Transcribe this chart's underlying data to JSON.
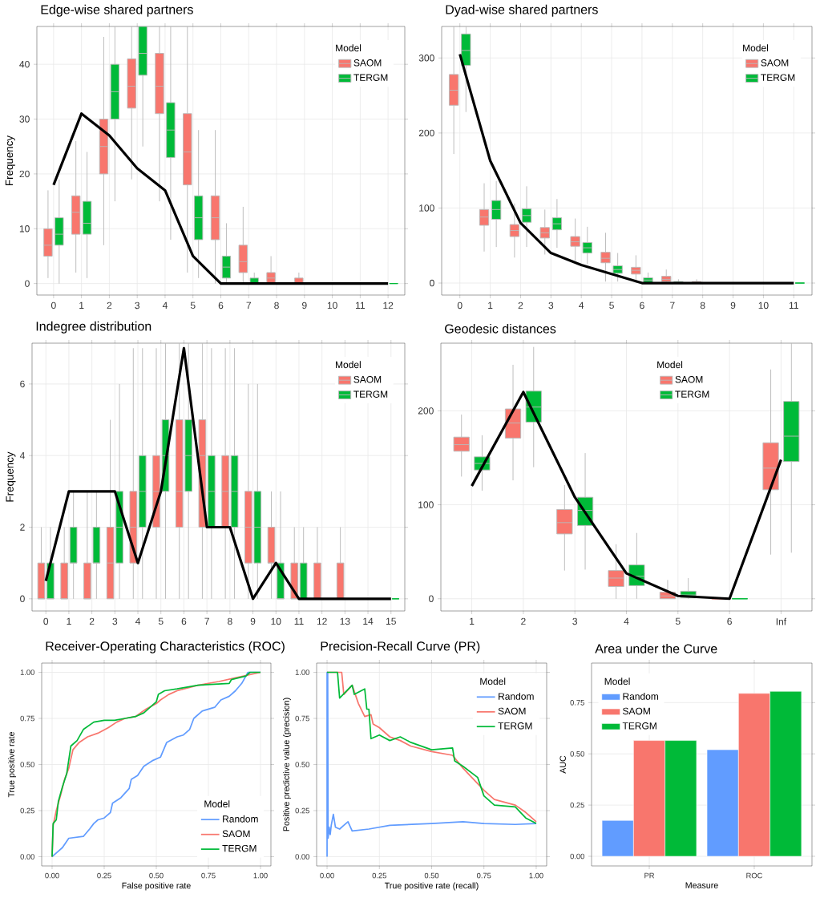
{
  "chart_data": [
    {
      "type": "box",
      "title": "Edge-wise shared partners",
      "ylabel": "Frequency",
      "legend_title": "Model",
      "legend": "top right",
      "grid": true,
      "categories": [
        "0",
        "1",
        "2",
        "3",
        "4",
        "5",
        "6",
        "7",
        "8",
        "9",
        "10",
        "11",
        "12"
      ],
      "ylim": [
        -2.1,
        46.9
      ],
      "yticks": [
        0,
        10,
        20,
        30,
        40
      ],
      "series": [
        {
          "name": "SAOM",
          "color": "#f8766d",
          "boxes": [
            {
              "low": 1,
              "q1": 5,
              "median": 7,
              "q3": 10,
              "high": 17
            },
            {
              "low": 2,
              "q1": 9,
              "median": 13,
              "q3": 16,
              "high": 26
            },
            {
              "low": 7,
              "q1": 20,
              "median": 25,
              "q3": 30,
              "high": 45
            },
            {
              "low": 19,
              "q1": 32,
              "median": 36,
              "q3": 41,
              "high": 46.9
            },
            {
              "low": 15,
              "q1": 31,
              "median": 36,
              "q3": 42,
              "high": 46.9
            },
            {
              "low": 2,
              "q1": 18,
              "median": 24,
              "q3": 31,
              "high": 46.9
            },
            {
              "low": 0,
              "q1": 8,
              "median": 12,
              "q3": 16,
              "high": 28
            },
            {
              "low": 0,
              "q1": 2,
              "median": 4,
              "q3": 7,
              "high": 14
            },
            {
              "low": 0,
              "q1": 0,
              "median": 1,
              "q3": 2,
              "high": 5
            },
            {
              "low": 0,
              "q1": 0,
              "median": 0,
              "q3": 1,
              "high": 2
            },
            {
              "low": 0,
              "q1": 0,
              "median": 0,
              "q3": 0,
              "high": 0
            },
            {
              "low": 0,
              "q1": 0,
              "median": 0,
              "q3": 0,
              "high": 0
            },
            {
              "low": 0,
              "q1": 0,
              "median": 0,
              "q3": 0,
              "high": 0
            }
          ]
        },
        {
          "name": "TERGM",
          "color": "#00ba38",
          "boxes": [
            {
              "low": 0,
              "q1": 7,
              "median": 9,
              "q3": 12,
              "high": 19
            },
            {
              "low": 1,
              "q1": 9,
              "median": 11,
              "q3": 15,
              "high": 24
            },
            {
              "low": 15,
              "q1": 30,
              "median": 35,
              "q3": 40,
              "high": 46.9
            },
            {
              "low": 25,
              "q1": 38,
              "median": 42,
              "q3": 46.9,
              "high": 46.9
            },
            {
              "low": 8,
              "q1": 23,
              "median": 28,
              "q3": 33,
              "high": 46.9
            },
            {
              "low": 1,
              "q1": 8,
              "median": 12,
              "q3": 16,
              "high": 28
            },
            {
              "low": 0,
              "q1": 1,
              "median": 3,
              "q3": 5,
              "high": 11
            },
            {
              "low": 0,
              "q1": 0,
              "median": 0,
              "q3": 1,
              "high": 2
            },
            {
              "low": 0,
              "q1": 0,
              "median": 0,
              "q3": 0,
              "high": 0
            },
            {
              "low": 0,
              "q1": 0,
              "median": 0,
              "q3": 0,
              "high": 0
            },
            {
              "low": 0,
              "q1": 0,
              "median": 0,
              "q3": 0,
              "high": 0
            },
            {
              "low": 0,
              "q1": 0,
              "median": 0,
              "q3": 0,
              "high": 0
            },
            {
              "low": 0,
              "q1": 0,
              "median": 0,
              "q3": 0,
              "high": 0
            }
          ]
        },
        {
          "type": "line",
          "color": "#000000",
          "values": [
            18,
            31,
            27,
            21,
            17,
            5,
            0,
            0,
            0,
            0,
            0,
            0,
            0
          ]
        }
      ]
    },
    {
      "type": "box",
      "title": "Dyad-wise shared partners",
      "legend_title": "Model",
      "legend": "top right",
      "grid": true,
      "categories": [
        "0",
        "1",
        "2",
        "3",
        "4",
        "5",
        "6",
        "7",
        "8",
        "9",
        "10",
        "11"
      ],
      "ylim": [
        -16,
        342
      ],
      "yticks": [
        0,
        100,
        200,
        300
      ],
      "series": [
        {
          "name": "SAOM",
          "color": "#f8766d",
          "boxes": [
            {
              "low": 172,
              "q1": 237,
              "median": 257,
              "q3": 278,
              "high": 342
            },
            {
              "low": 42,
              "q1": 77,
              "median": 88,
              "q3": 98,
              "high": 133
            },
            {
              "low": 34,
              "q1": 62,
              "median": 70,
              "q3": 78,
              "high": 106
            },
            {
              "low": 38,
              "q1": 60,
              "median": 67,
              "q3": 74,
              "high": 98
            },
            {
              "low": 30,
              "q1": 49,
              "median": 55,
              "q3": 62,
              "high": 86
            },
            {
              "low": 2,
              "q1": 27,
              "median": 33,
              "q3": 41,
              "high": 67
            },
            {
              "low": 0,
              "q1": 12,
              "median": 17,
              "q3": 21,
              "high": 37
            },
            {
              "low": 0,
              "q1": 2,
              "median": 5,
              "q3": 9,
              "high": 18
            },
            {
              "low": 0,
              "q1": 0,
              "median": 1,
              "q3": 2,
              "high": 5
            },
            {
              "low": 0,
              "q1": 0,
              "median": 0,
              "q3": 0,
              "high": 0
            },
            {
              "low": 0,
              "q1": 0,
              "median": 0,
              "q3": 0,
              "high": 0
            },
            {
              "low": 0,
              "q1": 0,
              "median": 0,
              "q3": 0,
              "high": 0
            }
          ]
        },
        {
          "name": "TERGM",
          "color": "#00ba38",
          "boxes": [
            {
              "low": 228,
              "q1": 290,
              "median": 310,
              "q3": 332,
              "high": 342
            },
            {
              "low": 48,
              "q1": 85,
              "median": 98,
              "q3": 110,
              "high": 136
            },
            {
              "low": 48,
              "q1": 81,
              "median": 90,
              "q3": 99,
              "high": 129
            },
            {
              "low": 47,
              "q1": 71,
              "median": 79,
              "q3": 87,
              "high": 112
            },
            {
              "low": 25,
              "q1": 40,
              "median": 47,
              "q3": 54,
              "high": 75
            },
            {
              "low": 2,
              "q1": 13,
              "median": 18,
              "q3": 23,
              "high": 40
            },
            {
              "low": 0,
              "q1": 1,
              "median": 4,
              "q3": 7,
              "high": 14
            },
            {
              "low": 0,
              "q1": 0,
              "median": 1,
              "q3": 2,
              "high": 5
            },
            {
              "low": 0,
              "q1": 0,
              "median": 0,
              "q3": 0,
              "high": 0
            },
            {
              "low": 0,
              "q1": 0,
              "median": 0,
              "q3": 0,
              "high": 0
            },
            {
              "low": 0,
              "q1": 0,
              "median": 0,
              "q3": 0,
              "high": 0
            },
            {
              "low": 0,
              "q1": 0,
              "median": 0,
              "q3": 0,
              "high": 0
            }
          ]
        },
        {
          "type": "line",
          "color": "#000000",
          "values": [
            305,
            163,
            80,
            40,
            24,
            12,
            0,
            0,
            0,
            0,
            0,
            0
          ]
        }
      ]
    },
    {
      "type": "box",
      "title": "Indegree distribution",
      "ylabel": "Frequency",
      "legend_title": "Model",
      "legend": "top right",
      "grid": true,
      "categories": [
        "0",
        "1",
        "2",
        "3",
        "4",
        "5",
        "6",
        "7",
        "8",
        "9",
        "10",
        "11",
        "12",
        "13",
        "14",
        "15"
      ],
      "ylim": [
        -0.34,
        7.14
      ],
      "yticks": [
        0,
        2,
        4,
        6
      ],
      "series": [
        {
          "name": "SAOM",
          "color": "#f8766d",
          "boxes": [
            {
              "low": 0,
              "q1": 0,
              "median": 0,
              "q3": 1,
              "high": 2
            },
            {
              "low": 0,
              "q1": 0,
              "median": 0,
              "q3": 1,
              "high": 2
            },
            {
              "low": 0,
              "q1": 0,
              "median": 0,
              "q3": 1,
              "high": 3
            },
            {
              "low": 0,
              "q1": 0,
              "median": 1,
              "q3": 2,
              "high": 5
            },
            {
              "low": 0,
              "q1": 1,
              "median": 2,
              "q3": 3,
              "high": 7
            },
            {
              "low": 0,
              "q1": 2,
              "median": 3,
              "q3": 4,
              "high": 7
            },
            {
              "low": 0,
              "q1": 2,
              "median": 3,
              "q3": 5,
              "high": 7.14
            },
            {
              "low": 0,
              "q1": 2,
              "median": 4,
              "q3": 5,
              "high": 7.14
            },
            {
              "low": 0,
              "q1": 2,
              "median": 3,
              "q3": 4,
              "high": 7
            },
            {
              "low": 0,
              "q1": 1,
              "median": 2,
              "q3": 3,
              "high": 6
            },
            {
              "low": 0,
              "q1": 1,
              "median": 1,
              "q3": 2,
              "high": 3
            },
            {
              "low": 0,
              "q1": 0,
              "median": 0,
              "q3": 1,
              "high": 2
            },
            {
              "low": 0,
              "q1": 0,
              "median": 0,
              "q3": 1,
              "high": 2
            },
            {
              "low": 0,
              "q1": 0,
              "median": 0,
              "q3": 1,
              "high": 2
            },
            {
              "low": 0,
              "q1": 0,
              "median": 0,
              "q3": 0,
              "high": 0
            },
            {
              "low": 0,
              "q1": 0,
              "median": 0,
              "q3": 0,
              "high": 0
            }
          ]
        },
        {
          "name": "TERGM",
          "color": "#00ba38",
          "boxes": [
            {
              "low": 0,
              "q1": 0,
              "median": 0,
              "q3": 1,
              "high": 2
            },
            {
              "low": 0,
              "q1": 1,
              "median": 1,
              "q3": 2,
              "high": 3
            },
            {
              "low": 0,
              "q1": 1,
              "median": 1,
              "q3": 2,
              "high": 3
            },
            {
              "low": 0,
              "q1": 1,
              "median": 2,
              "q3": 3,
              "high": 6
            },
            {
              "low": 0,
              "q1": 2,
              "median": 3,
              "q3": 4,
              "high": 7
            },
            {
              "low": 0,
              "q1": 3,
              "median": 4,
              "q3": 5,
              "high": 7.14
            },
            {
              "low": 0,
              "q1": 3,
              "median": 4,
              "q3": 5,
              "high": 7.14
            },
            {
              "low": 0,
              "q1": 2,
              "median": 3,
              "q3": 4,
              "high": 7
            },
            {
              "low": 0,
              "q1": 2,
              "median": 3,
              "q3": 4,
              "high": 7
            },
            {
              "low": 0,
              "q1": 1,
              "median": 2,
              "q3": 3,
              "high": 6
            },
            {
              "low": 0,
              "q1": 0,
              "median": 0,
              "q3": 1,
              "high": 3
            },
            {
              "low": 0,
              "q1": 0,
              "median": 0,
              "q3": 1,
              "high": 2
            },
            {
              "low": 0,
              "q1": 0,
              "median": 0,
              "q3": 0,
              "high": 0
            },
            {
              "low": 0,
              "q1": 0,
              "median": 0,
              "q3": 0,
              "high": 0
            },
            {
              "low": 0,
              "q1": 0,
              "median": 0,
              "q3": 0,
              "high": 0
            },
            {
              "low": 0,
              "q1": 0,
              "median": 0,
              "q3": 0,
              "high": 0
            }
          ]
        },
        {
          "type": "line",
          "color": "#000000",
          "values": [
            0.5,
            3,
            3,
            3,
            1,
            3,
            7,
            2,
            2,
            0,
            1,
            0,
            0,
            0,
            0,
            0
          ]
        }
      ]
    },
    {
      "type": "box",
      "title": "Geodesic distances",
      "legend_title": "Model",
      "legend": "top",
      "grid": true,
      "categories": [
        "1",
        "2",
        "3",
        "4",
        "5",
        "6",
        "Inf"
      ],
      "ylim": [
        -13,
        272
      ],
      "yticks": [
        0,
        100,
        200
      ],
      "series": [
        {
          "name": "SAOM",
          "color": "#f8766d",
          "boxes": [
            {
              "low": 130,
              "q1": 157,
              "median": 164,
              "q3": 172,
              "high": 196
            },
            {
              "low": 126,
              "q1": 171,
              "median": 187,
              "q3": 202,
              "high": 249
            },
            {
              "low": 30,
              "q1": 69,
              "median": 81,
              "q3": 95,
              "high": 121
            },
            {
              "low": 0,
              "q1": 13,
              "median": 22,
              "q3": 30,
              "high": 58
            },
            {
              "low": 0,
              "q1": 0,
              "median": 3,
              "q3": 7,
              "high": 20
            },
            {
              "low": 0,
              "q1": 0,
              "median": 0,
              "q3": 0,
              "high": 0
            },
            {
              "low": 47,
              "q1": 116,
              "median": 139,
              "q3": 166,
              "high": 244
            }
          ]
        },
        {
          "name": "TERGM",
          "color": "#00ba38",
          "boxes": [
            {
              "low": 115,
              "q1": 137,
              "median": 144,
              "q3": 151,
              "high": 174
            },
            {
              "low": 140,
              "q1": 188,
              "median": 204,
              "q3": 221,
              "high": 268
            },
            {
              "low": 31,
              "q1": 78,
              "median": 94,
              "q3": 108,
              "high": 155
            },
            {
              "low": 0,
              "q1": 14,
              "median": 24,
              "q3": 36,
              "high": 70
            },
            {
              "low": 0,
              "q1": 1,
              "median": 4,
              "q3": 8,
              "high": 22
            },
            {
              "low": 0,
              "q1": 0,
              "median": 0,
              "q3": 0,
              "high": 0
            },
            {
              "low": 49,
              "q1": 146,
              "median": 173,
              "q3": 210,
              "high": 272
            }
          ]
        },
        {
          "type": "line",
          "color": "#000000",
          "values": [
            120,
            220,
            108,
            27,
            3,
            0,
            148
          ]
        }
      ]
    },
    {
      "type": "line",
      "title": "Receiver-Operating Characteristics (ROC)",
      "xlabel": "False positive rate",
      "ylabel": "True positive rate",
      "legend_title": "Model",
      "legend": "bottom right",
      "grid": true,
      "xlim": [
        -0.05,
        1.05
      ],
      "ylim": [
        -0.05,
        1.05
      ],
      "xticks": [
        {
          "value": 0,
          "label": "0.00"
        },
        {
          "value": 0.25,
          "label": "0.25"
        },
        {
          "value": 0.5,
          "label": "0.50"
        },
        {
          "value": 0.75,
          "label": "0.75"
        },
        {
          "value": 1,
          "label": "1.00"
        }
      ],
      "yticks": [
        {
          "value": 0,
          "label": "0.00"
        },
        {
          "value": 0.25,
          "label": "0.25"
        },
        {
          "value": 0.5,
          "label": "0.50"
        },
        {
          "value": 0.75,
          "label": "0.75"
        },
        {
          "value": 1,
          "label": "1.00"
        }
      ],
      "series": [
        {
          "name": "Random",
          "color": "#619cff",
          "x": [
            0,
            0.01,
            0.03,
            0.05,
            0.08,
            0.15,
            0.18,
            0.2,
            0.22,
            0.25,
            0.28,
            0.29,
            0.33,
            0.37,
            0.38,
            0.41,
            0.44,
            0.48,
            0.52,
            0.55,
            0.6,
            0.63,
            0.66,
            0.68,
            0.72,
            0.78,
            0.81,
            0.85,
            0.88,
            0.91,
            0.94,
            1
          ],
          "values": [
            0,
            0.01,
            0.03,
            0.05,
            0.1,
            0.11,
            0.15,
            0.18,
            0.2,
            0.21,
            0.24,
            0.29,
            0.32,
            0.37,
            0.42,
            0.44,
            0.49,
            0.52,
            0.54,
            0.62,
            0.65,
            0.66,
            0.69,
            0.75,
            0.79,
            0.81,
            0.85,
            0.87,
            0.9,
            0.94,
            1,
            1
          ]
        },
        {
          "name": "SAOM",
          "color": "#f8766d",
          "x": [
            0,
            0.005,
            0.02,
            0.04,
            0.06,
            0.08,
            0.1,
            0.13,
            0.17,
            0.22,
            0.27,
            0.31,
            0.35,
            0.4,
            0.45,
            0.5,
            0.52,
            0.56,
            0.6,
            0.7,
            0.8,
            0.88,
            1
          ],
          "values": [
            0,
            0.17,
            0.25,
            0.33,
            0.42,
            0.48,
            0.58,
            0.62,
            0.65,
            0.67,
            0.7,
            0.73,
            0.75,
            0.76,
            0.8,
            0.83,
            0.85,
            0.88,
            0.9,
            0.93,
            0.95,
            0.97,
            1
          ]
        },
        {
          "name": "TERGM",
          "color": "#00ba38",
          "x": [
            0,
            0.005,
            0.02,
            0.03,
            0.05,
            0.07,
            0.09,
            0.12,
            0.15,
            0.2,
            0.25,
            0.3,
            0.35,
            0.4,
            0.44,
            0.48,
            0.5,
            0.51,
            0.54,
            0.6,
            0.7,
            0.85,
            0.86,
            0.93,
            0.95,
            1
          ],
          "values": [
            0,
            0.18,
            0.2,
            0.3,
            0.38,
            0.45,
            0.6,
            0.63,
            0.69,
            0.73,
            0.74,
            0.74,
            0.75,
            0.76,
            0.78,
            0.82,
            0.84,
            0.88,
            0.9,
            0.91,
            0.93,
            0.94,
            0.96,
            0.98,
            1,
            1
          ]
        }
      ]
    },
    {
      "type": "line",
      "title": "Precision-Recall Curve (PR)",
      "xlabel": "True positive rate (recall)",
      "ylabel": "Positive predictive value (precision)",
      "legend_title": "Model",
      "legend": "top right",
      "grid": true,
      "xlim": [
        -0.05,
        1.05
      ],
      "ylim": [
        -0.05,
        1.05
      ],
      "xticks": [
        {
          "value": 0,
          "label": "0.00"
        },
        {
          "value": 0.25,
          "label": "0.25"
        },
        {
          "value": 0.5,
          "label": "0.50"
        },
        {
          "value": 0.75,
          "label": "0.75"
        },
        {
          "value": 1,
          "label": "1.00"
        }
      ],
      "yticks": [
        {
          "value": 0,
          "label": "0.00"
        },
        {
          "value": 0.25,
          "label": "0.25"
        },
        {
          "value": 0.5,
          "label": "0.50"
        },
        {
          "value": 0.75,
          "label": "0.75"
        },
        {
          "value": 1,
          "label": "1.00"
        }
      ],
      "series": [
        {
          "name": "Random",
          "color": "#619cff",
          "x": [
            0,
            0,
            0.003,
            0.005,
            0.01,
            0.015,
            0.02,
            0.03,
            0.04,
            0.06,
            0.08,
            0.1,
            0.12,
            0.2,
            0.3,
            0.5,
            0.65,
            0.75,
            0.9,
            1
          ],
          "values": [
            0,
            1,
            1,
            0.1,
            0.16,
            0.12,
            0.17,
            0.23,
            0.16,
            0.15,
            0.17,
            0.19,
            0.14,
            0.15,
            0.17,
            0.18,
            0.19,
            0.18,
            0.175,
            0.18
          ]
        },
        {
          "name": "SAOM",
          "color": "#f8766d",
          "x": [
            0,
            0.07,
            0.08,
            0.12,
            0.15,
            0.18,
            0.21,
            0.22,
            0.25,
            0.3,
            0.35,
            0.4,
            0.5,
            0.6,
            0.65,
            0.7,
            0.75,
            0.8,
            0.9,
            0.95,
            1
          ],
          "values": [
            1,
            1,
            0.88,
            0.93,
            0.83,
            0.76,
            0.77,
            0.72,
            0.7,
            0.65,
            0.63,
            0.6,
            0.57,
            0.55,
            0.48,
            0.42,
            0.36,
            0.31,
            0.28,
            0.24,
            0.19
          ]
        },
        {
          "name": "TERGM",
          "color": "#00ba38",
          "x": [
            0,
            0.05,
            0.06,
            0.12,
            0.13,
            0.18,
            0.19,
            0.2,
            0.21,
            0.25,
            0.3,
            0.35,
            0.4,
            0.5,
            0.6,
            0.61,
            0.65,
            0.72,
            0.75,
            0.8,
            0.9,
            0.95,
            1
          ],
          "values": [
            1,
            1,
            0.86,
            0.93,
            0.88,
            0.91,
            0.8,
            0.8,
            0.64,
            0.66,
            0.63,
            0.65,
            0.62,
            0.58,
            0.59,
            0.52,
            0.49,
            0.43,
            0.33,
            0.28,
            0.27,
            0.21,
            0.18
          ]
        }
      ]
    },
    {
      "type": "bar",
      "title": "Area under the Curve",
      "xlabel": "Measure",
      "ylabel": "AUC",
      "legend_title": "Model",
      "legend": "top left",
      "grid": true,
      "categories": [
        "PR",
        "ROC"
      ],
      "ylim": [
        -0.047,
        0.943
      ],
      "yticks": [
        {
          "value": 0,
          "label": "0.00"
        },
        {
          "value": 0.25,
          "label": "0.25"
        },
        {
          "value": 0.5,
          "label": "0.50"
        },
        {
          "value": 0.75,
          "label": "0.75"
        }
      ],
      "series": [
        {
          "name": "Random",
          "color": "#619cff",
          "values": [
            0.175,
            0.52
          ]
        },
        {
          "name": "SAOM",
          "color": "#f8766d",
          "values": [
            0.565,
            0.795
          ]
        },
        {
          "name": "TERGM",
          "color": "#00ba38",
          "values": [
            0.565,
            0.805
          ]
        }
      ]
    }
  ]
}
